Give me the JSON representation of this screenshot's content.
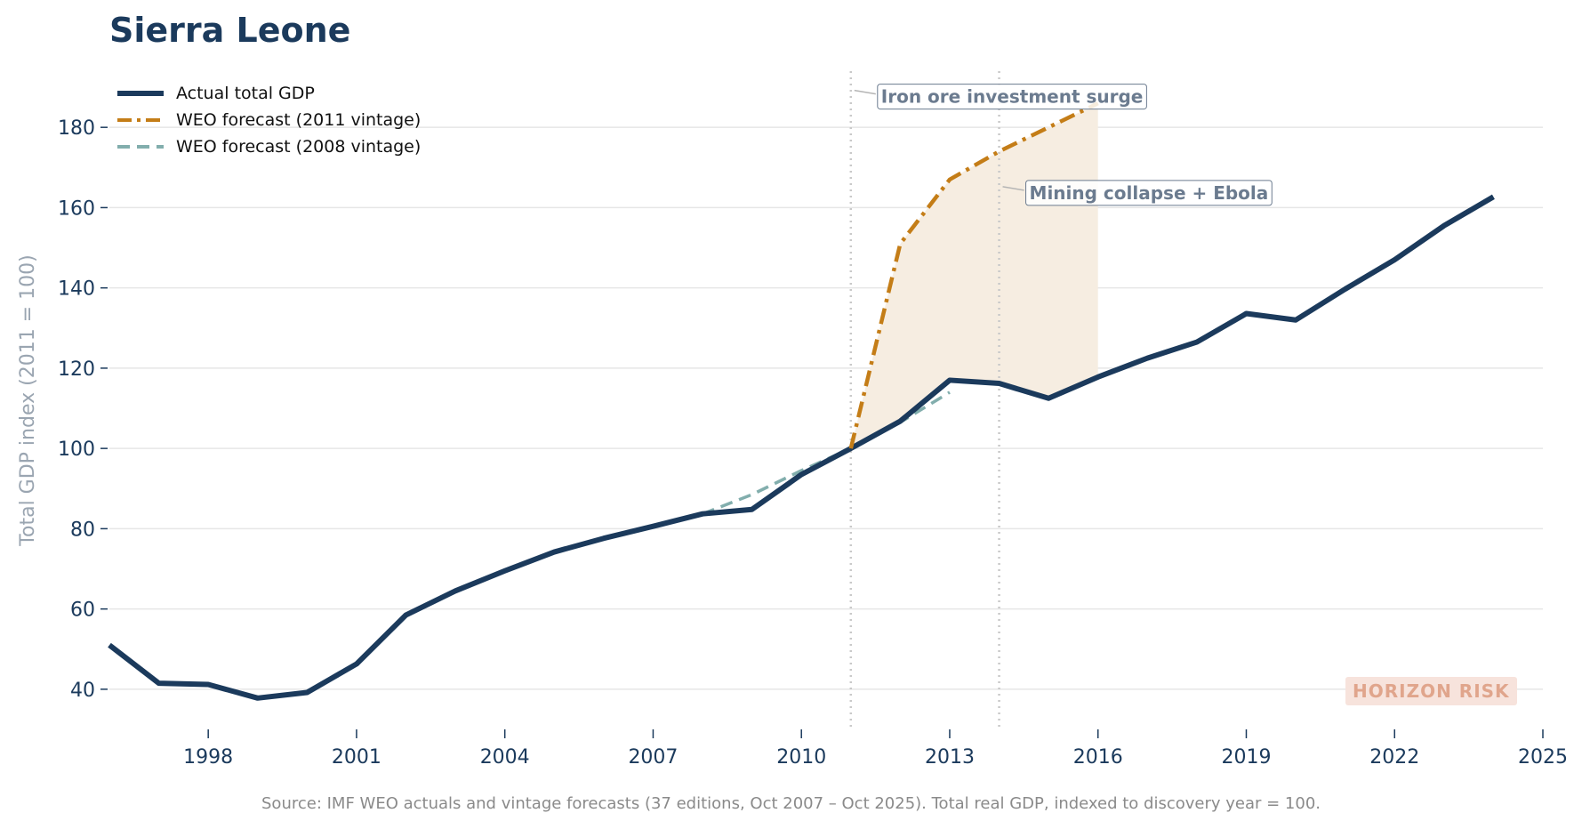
{
  "title": "Sierra Leone",
  "source": "Source: IMF WEO actuals and vintage forecasts (37 editions, Oct 2007 – Oct 2025). Total real GDP, indexed to discovery year = 100.",
  "watermark": "HORIZON RISK",
  "colors": {
    "actual": "#1b3a5c",
    "forecast_2011": "#c47d17",
    "forecast_2008": "#82aead",
    "shade": "#f6ede1",
    "annotation": "#6b7b8f"
  },
  "legend": [
    {
      "label": "Actual total GDP",
      "style": "solid"
    },
    {
      "label": "WEO forecast (2011 vintage)",
      "style": "dashdot"
    },
    {
      "label": "WEO forecast (2008 vintage)",
      "style": "dashed"
    }
  ],
  "chart_data": {
    "type": "line",
    "title": "Sierra Leone",
    "xlabel": "",
    "ylabel": "Total GDP index (2011 = 100)",
    "xlim": [
      1996,
      2025
    ],
    "ylim": [
      30,
      194
    ],
    "xticks": [
      1998,
      2001,
      2004,
      2007,
      2010,
      2013,
      2016,
      2019,
      2022,
      2025
    ],
    "yticks": [
      40,
      60,
      80,
      100,
      120,
      140,
      160,
      180
    ],
    "grid": "horizontal",
    "legend_position": "top-left",
    "series": [
      {
        "name": "Actual total GDP",
        "x": [
          1996,
          1997,
          1998,
          1999,
          2000,
          2001,
          2002,
          2003,
          2004,
          2005,
          2006,
          2007,
          2008,
          2009,
          2010,
          2011,
          2012,
          2013,
          2014,
          2015,
          2016,
          2017,
          2018,
          2019,
          2020,
          2021,
          2022,
          2023,
          2024
        ],
        "y": [
          51,
          41.5,
          41.2,
          37.8,
          39.2,
          46.3,
          58.5,
          64.5,
          69.5,
          74.2,
          77.6,
          80.6,
          83.7,
          84.8,
          93.5,
          100,
          106.8,
          117,
          116.2,
          112.5,
          117.8,
          122.5,
          126.5,
          133.6,
          132,
          139.7,
          147,
          155.5,
          162.7
        ]
      },
      {
        "name": "WEO forecast (2011 vintage)",
        "x": [
          2011,
          2012,
          2013,
          2014,
          2015,
          2016
        ],
        "y": [
          100,
          151,
          167,
          174,
          180,
          186
        ]
      },
      {
        "name": "WEO forecast (2008 vintage)",
        "x": [
          2008,
          2009,
          2010,
          2011,
          2012,
          2013
        ],
        "y": [
          83.7,
          88.5,
          94.5,
          100,
          106.5,
          114
        ]
      }
    ],
    "vlines": [
      2011,
      2014
    ],
    "shaded_gap": {
      "from_year": 2011,
      "to_year": 2016
    },
    "annotations": [
      {
        "text": "Iron ore investment surge",
        "x": 2011,
        "y": 187
      },
      {
        "text": "Mining collapse + Ebola",
        "x": 2014,
        "y": 163
      }
    ]
  }
}
